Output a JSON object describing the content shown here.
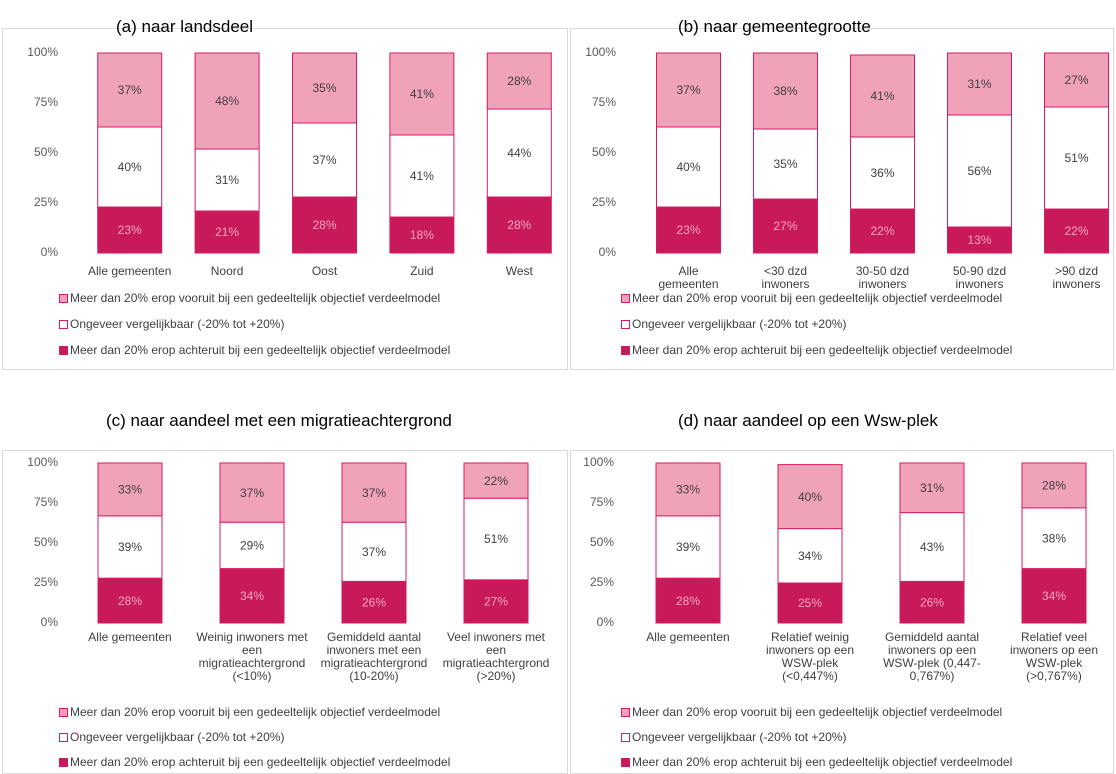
{
  "chart_data": [
    {
      "type": "stacked_bar",
      "title": "(a) naar landsdeel",
      "categories": [
        "Alle gemeenten",
        "Noord",
        "Oost",
        "Zuid",
        "West"
      ],
      "ylim": [
        0,
        100
      ],
      "yticks": [
        {
          "value": 0,
          "label": "0%"
        },
        {
          "value": 25,
          "label": "25%"
        },
        {
          "value": 50,
          "label": "50%"
        },
        {
          "value": 75,
          "label": "75%"
        },
        {
          "value": 100,
          "label": "100%"
        }
      ],
      "series": [
        {
          "name": "Meer dan 20% erop vooruit bij een gedeeltelijk objectief verdeelmodel",
          "color": "#f0a3b8",
          "values": [
            37,
            48,
            35,
            41,
            28
          ],
          "value_labels": [
            "37%",
            "48%",
            "35%",
            "41%",
            "28%"
          ]
        },
        {
          "name": "Ongeveer vergelijkbaar (-20% tot +20%)",
          "color": "#ffffff",
          "values": [
            40,
            31,
            37,
            41,
            44
          ],
          "value_labels": [
            "40%",
            "31%",
            "37%",
            "41%",
            "44%"
          ]
        },
        {
          "name": "Meer dan 20% erop achteruit bij een gedeeltelijk objectief verdeelmodel",
          "color": "#c8195a",
          "values": [
            23,
            21,
            28,
            18,
            28
          ],
          "value_labels": [
            "23%",
            "21%",
            "28%",
            "18%",
            "28%"
          ]
        }
      ]
    },
    {
      "type": "stacked_bar",
      "title": "(b) naar gemeentegrootte",
      "categories": [
        "Alle gemeenten",
        "<30 dzd inwoners",
        "30-50 dzd inwoners",
        "50-90 dzd inwoners",
        ">90 dzd inwoners"
      ],
      "ylim": [
        0,
        100
      ],
      "yticks": [
        {
          "value": 0,
          "label": "0%"
        },
        {
          "value": 25,
          "label": "25%"
        },
        {
          "value": 50,
          "label": "50%"
        },
        {
          "value": 75,
          "label": "75%"
        },
        {
          "value": 100,
          "label": "100%"
        }
      ],
      "series": [
        {
          "name": "Meer dan 20% erop vooruit bij een gedeeltelijk objectief verdeelmodel",
          "color": "#f0a3b8",
          "values": [
            37,
            38,
            41,
            31,
            27
          ],
          "value_labels": [
            "37%",
            "38%",
            "41%",
            "31%",
            "27%"
          ]
        },
        {
          "name": "Ongeveer vergelijkbaar (-20% tot +20%)",
          "color": "#ffffff",
          "values": [
            40,
            35,
            36,
            56,
            51
          ],
          "value_labels": [
            "40%",
            "35%",
            "36%",
            "56%",
            "51%"
          ]
        },
        {
          "name": "Meer dan 20% erop achteruit bij een gedeeltelijk objectief verdeelmodel",
          "color": "#c8195a",
          "values": [
            23,
            27,
            22,
            13,
            22
          ],
          "value_labels": [
            "23%",
            "27%",
            "22%",
            "13%",
            "22%"
          ]
        }
      ]
    },
    {
      "type": "stacked_bar",
      "title": "(c) naar aandeel met een migratieachtergrond",
      "categories": [
        "Alle gemeenten",
        "Weinig inwoners met een migratieachtergrond (<10%)",
        "Gemiddeld aantal inwoners met een migratieachtergrond (10-20%)",
        "Veel inwoners met een migratieachtergrond (>20%)"
      ],
      "ylim": [
        0,
        100
      ],
      "yticks": [
        {
          "value": 0,
          "label": "0%"
        },
        {
          "value": 25,
          "label": "25%"
        },
        {
          "value": 50,
          "label": "50%"
        },
        {
          "value": 75,
          "label": "75%"
        },
        {
          "value": 100,
          "label": "100%"
        }
      ],
      "series": [
        {
          "name": "Meer dan 20% erop vooruit bij een gedeeltelijk objectief verdeelmodel",
          "color": "#f0a3b8",
          "values": [
            33,
            37,
            37,
            22
          ],
          "value_labels": [
            "33%",
            "37%",
            "37%",
            "22%"
          ]
        },
        {
          "name": "Ongeveer vergelijkbaar (-20% tot +20%)",
          "color": "#ffffff",
          "values": [
            39,
            29,
            37,
            51
          ],
          "value_labels": [
            "39%",
            "29%",
            "37%",
            "51%"
          ]
        },
        {
          "name": "Meer dan 20% erop achteruit bij een gedeeltelijk objectief verdeelmodel",
          "color": "#c8195a",
          "values": [
            28,
            34,
            26,
            27
          ],
          "value_labels": [
            "28%",
            "34%",
            "26%",
            "27%"
          ]
        }
      ]
    },
    {
      "type": "stacked_bar",
      "title": "(d) naar aandeel op een Wsw-plek",
      "categories": [
        "Alle gemeenten",
        "Relatief weinig inwoners op een WSW-plek (<0,447%)",
        "Gemiddeld aantal inwoners op een WSW-plek (0,447-0,767%)",
        "Relatief veel inwoners op een WSW-plek (>0,767%)"
      ],
      "ylim": [
        0,
        100
      ],
      "yticks": [
        {
          "value": 0,
          "label": "0%"
        },
        {
          "value": 25,
          "label": "25%"
        },
        {
          "value": 50,
          "label": "50%"
        },
        {
          "value": 75,
          "label": "75%"
        },
        {
          "value": 100,
          "label": "100%"
        }
      ],
      "series": [
        {
          "name": "Meer dan 20% erop vooruit bij een gedeeltelijk objectief verdeelmodel",
          "color": "#f0a3b8",
          "values": [
            33,
            40,
            31,
            28
          ],
          "value_labels": [
            "33%",
            "40%",
            "31%",
            "28%"
          ]
        },
        {
          "name": "Ongeveer vergelijkbaar (-20% tot +20%)",
          "color": "#ffffff",
          "values": [
            39,
            34,
            43,
            38
          ],
          "value_labels": [
            "39%",
            "34%",
            "43%",
            "38%"
          ]
        },
        {
          "name": "Meer dan 20% erop achteruit bij een gedeeltelijk objectief verdeelmodel",
          "color": "#c8195a",
          "values": [
            28,
            25,
            26,
            34
          ],
          "value_labels": [
            "28%",
            "25%",
            "26%",
            "34%"
          ]
        }
      ]
    }
  ]
}
